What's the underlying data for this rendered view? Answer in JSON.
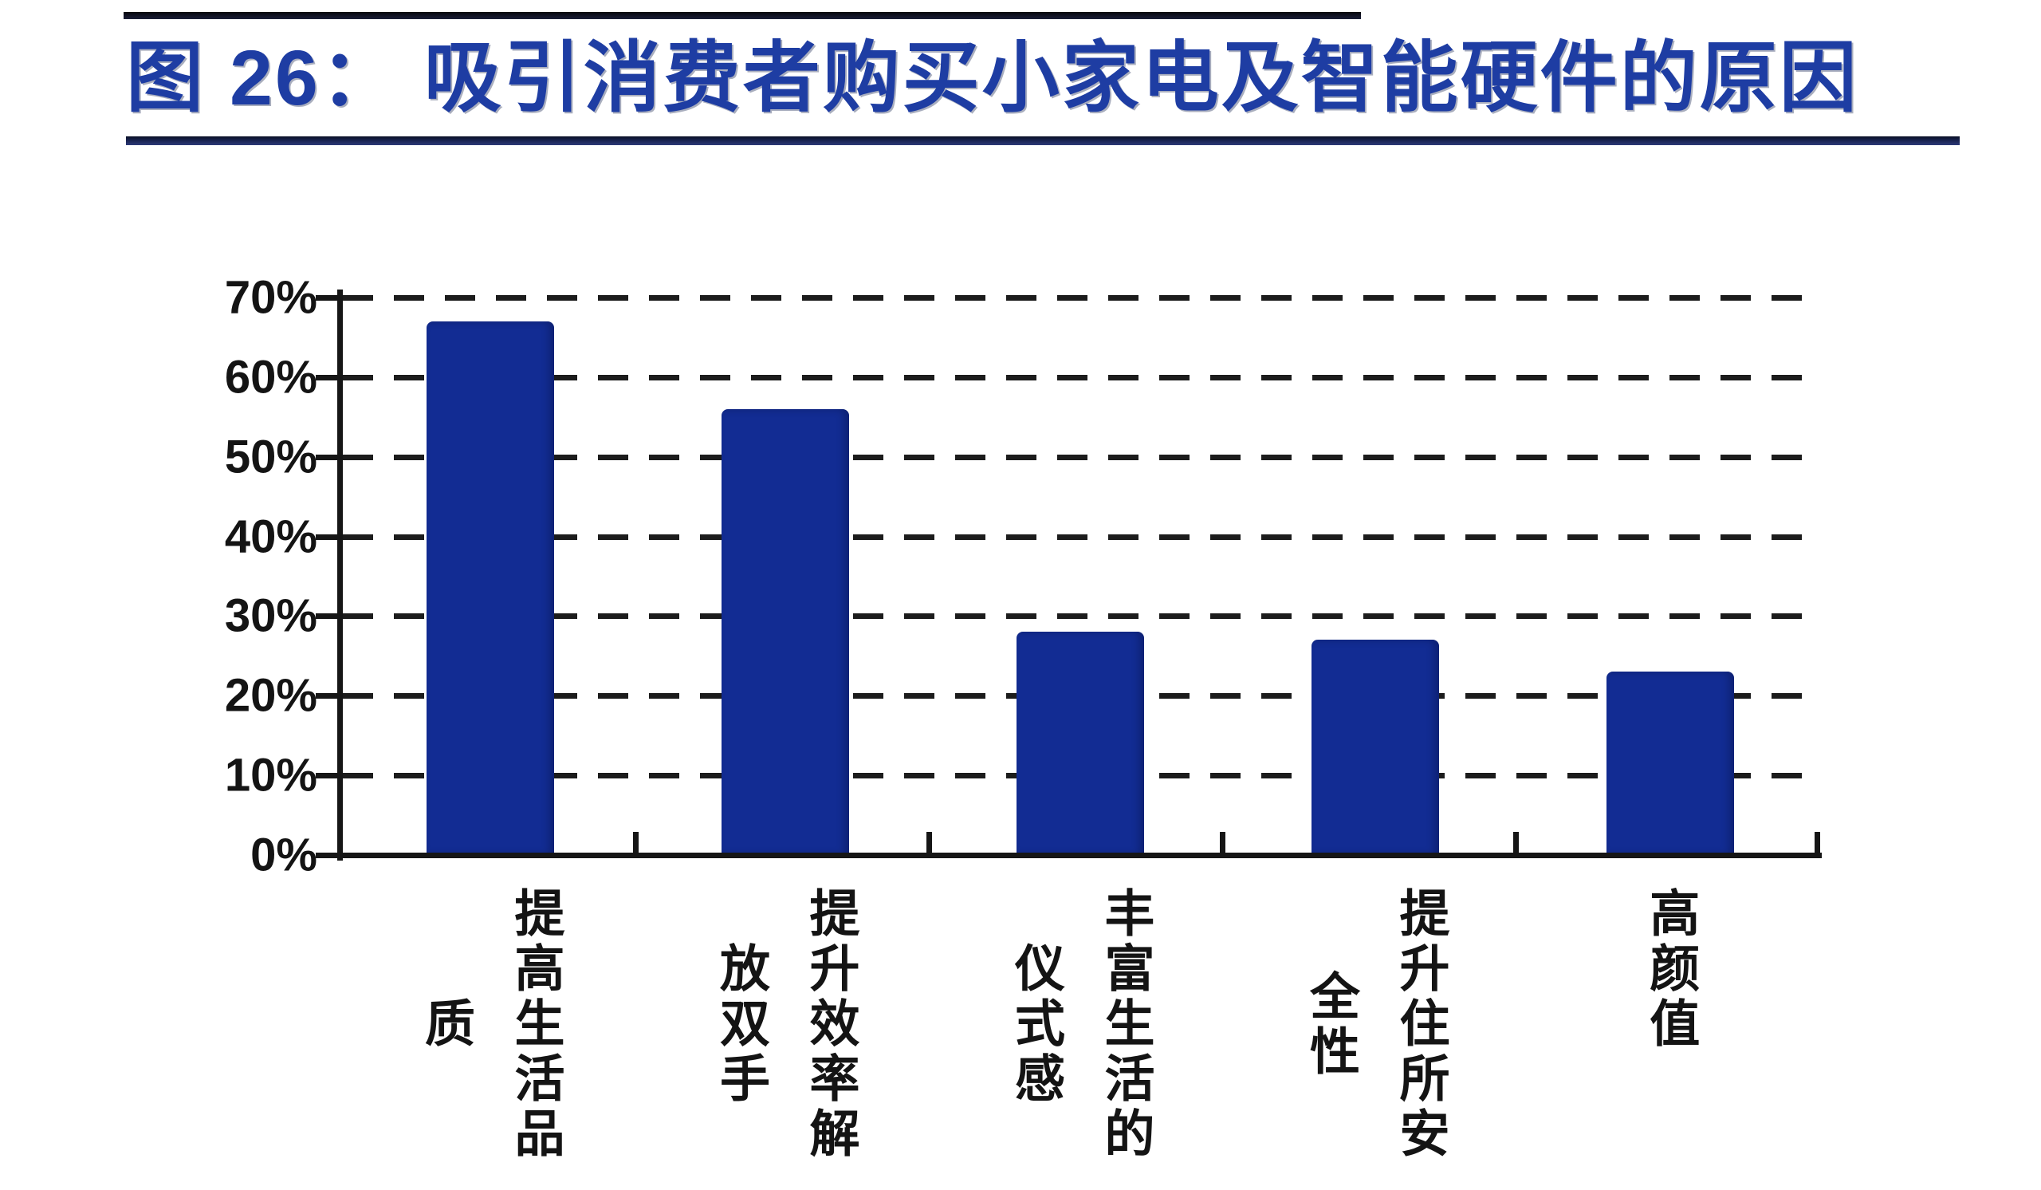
{
  "header": {
    "figure_label": "图 26：",
    "title_text": "图 26： 吸引消费者购买小家电及智能硬件的原因"
  },
  "chart_data": {
    "type": "bar",
    "title": "吸引消费者购买小家电及智能硬件的原因",
    "categories": [
      "提高生活品质",
      "提升效率解放双手",
      "丰富生活的仪式感",
      "提升住所安全性",
      "高颜值"
    ],
    "values": [
      67,
      56,
      28,
      27,
      23
    ],
    "unit": "%",
    "xlabel": "",
    "ylabel": "",
    "ylim": [
      0,
      70
    ],
    "ytick_step": 10,
    "ytick_labels": [
      "70%",
      "60%",
      "50%",
      "40%",
      "30%",
      "20%",
      "10%",
      "0%"
    ],
    "grid": "horizontal-dashed",
    "legend": "none",
    "bar_color": "#122c93",
    "label_columns": [
      [
        "提高生活品",
        "质"
      ],
      [
        "提升效率解",
        "放双手"
      ],
      [
        "丰富生活的",
        "仪式感"
      ],
      [
        "提升住所安",
        "全性"
      ],
      [
        "高颜值"
      ]
    ]
  },
  "colors": {
    "title": "#1e3da3",
    "bar": "#122c93",
    "axis": "#161616",
    "rule_top": "#10101c",
    "rule_under_title": "#1c2658",
    "background": "#ffffff"
  }
}
